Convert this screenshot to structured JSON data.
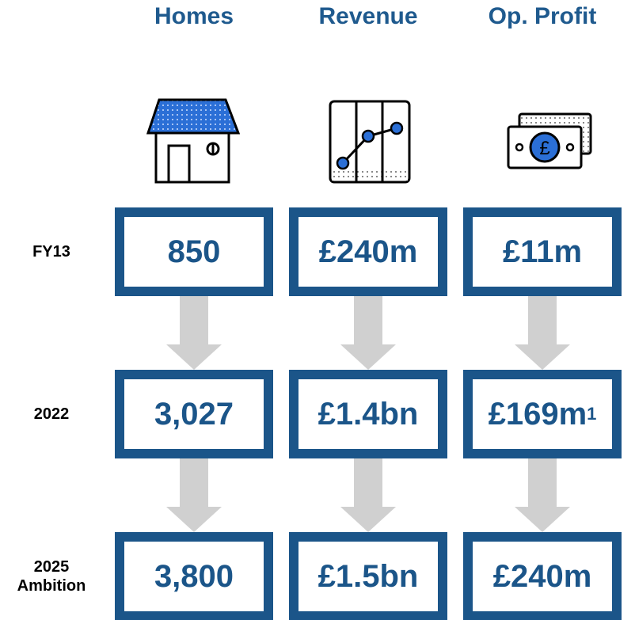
{
  "columns": [
    "Homes",
    "Revenue",
    "Op. Profit"
  ],
  "rows": [
    {
      "label": [
        "FY13"
      ],
      "cells": [
        "850",
        "£240m",
        "£11m"
      ]
    },
    {
      "label": [
        "2022"
      ],
      "cells": [
        "3,027",
        "£1.4bn",
        "£169m"
      ],
      "footnote": "1"
    },
    {
      "label": [
        "2025",
        "Ambition"
      ],
      "cells": [
        "3,800",
        "£1.5bn",
        "£240m"
      ]
    }
  ]
}
